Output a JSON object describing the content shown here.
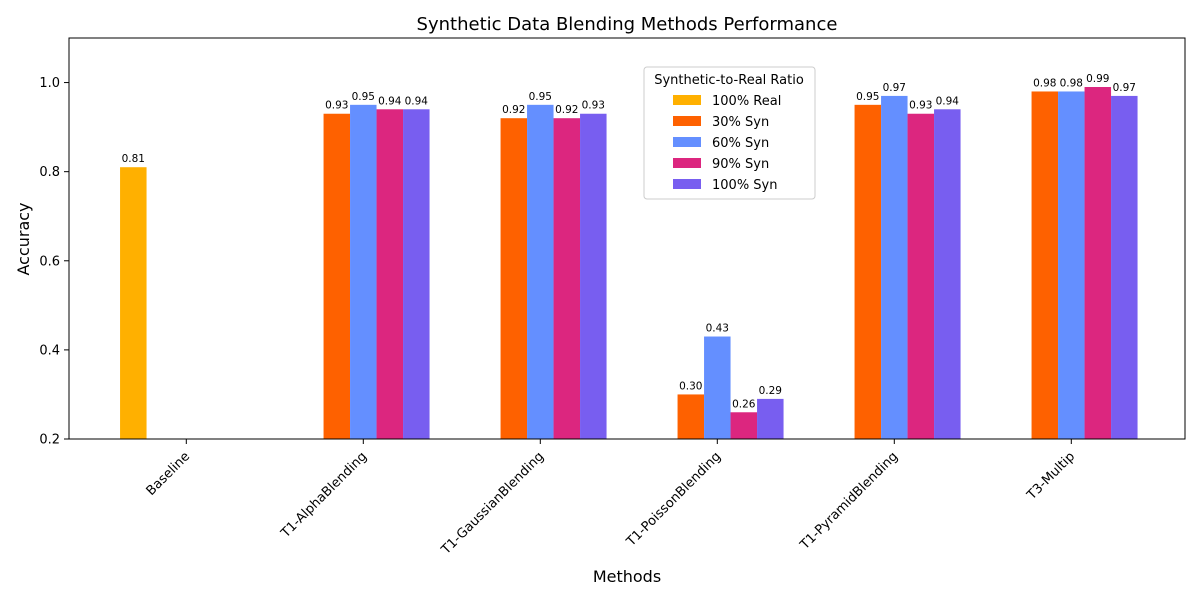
{
  "chart_data": {
    "type": "bar",
    "title": "Synthetic Data Blending Methods Performance",
    "xlabel": "Methods",
    "ylabel": "Accuracy",
    "ylim": [
      0.2,
      1.1
    ],
    "yticks": [
      "0.2",
      "0.4",
      "0.6",
      "0.8",
      "1.0"
    ],
    "grid": false,
    "legend_title": "Synthetic-to-Real Ratio",
    "legend_position": "top-center",
    "categories": [
      "Baseline",
      "T1-AlphaBlending",
      "T1-GaussianBlending",
      "T1-PoissonBlending",
      "T1-PyramidBlending",
      "T3-Multip"
    ],
    "series": [
      {
        "name": "100% Real",
        "color": "#ffb000",
        "values": [
          0.81,
          null,
          null,
          null,
          null,
          null
        ],
        "labels": [
          "0.81",
          null,
          null,
          null,
          null,
          null
        ]
      },
      {
        "name": "30% Syn",
        "color": "#fe6100",
        "values": [
          null,
          0.93,
          0.92,
          0.3,
          0.95,
          0.98
        ],
        "labels": [
          null,
          "0.93",
          "0.92",
          "0.30",
          "0.95",
          "0.98"
        ]
      },
      {
        "name": "60% Syn",
        "color": "#648fff",
        "values": [
          null,
          0.95,
          0.95,
          0.43,
          0.97,
          0.98
        ],
        "labels": [
          null,
          "0.95",
          "0.95",
          "0.43",
          "0.97",
          "0.98"
        ]
      },
      {
        "name": "90% Syn",
        "color": "#dc267f",
        "values": [
          null,
          0.94,
          0.92,
          0.26,
          0.93,
          0.99
        ],
        "labels": [
          null,
          "0.94",
          "0.92",
          "0.26",
          "0.93",
          "0.99"
        ]
      },
      {
        "name": "100% Syn",
        "color": "#785ef0",
        "values": [
          null,
          0.94,
          0.93,
          0.29,
          0.94,
          0.97
        ],
        "labels": [
          null,
          "0.94",
          "0.93",
          "0.29",
          "0.94",
          "0.97"
        ]
      }
    ]
  }
}
